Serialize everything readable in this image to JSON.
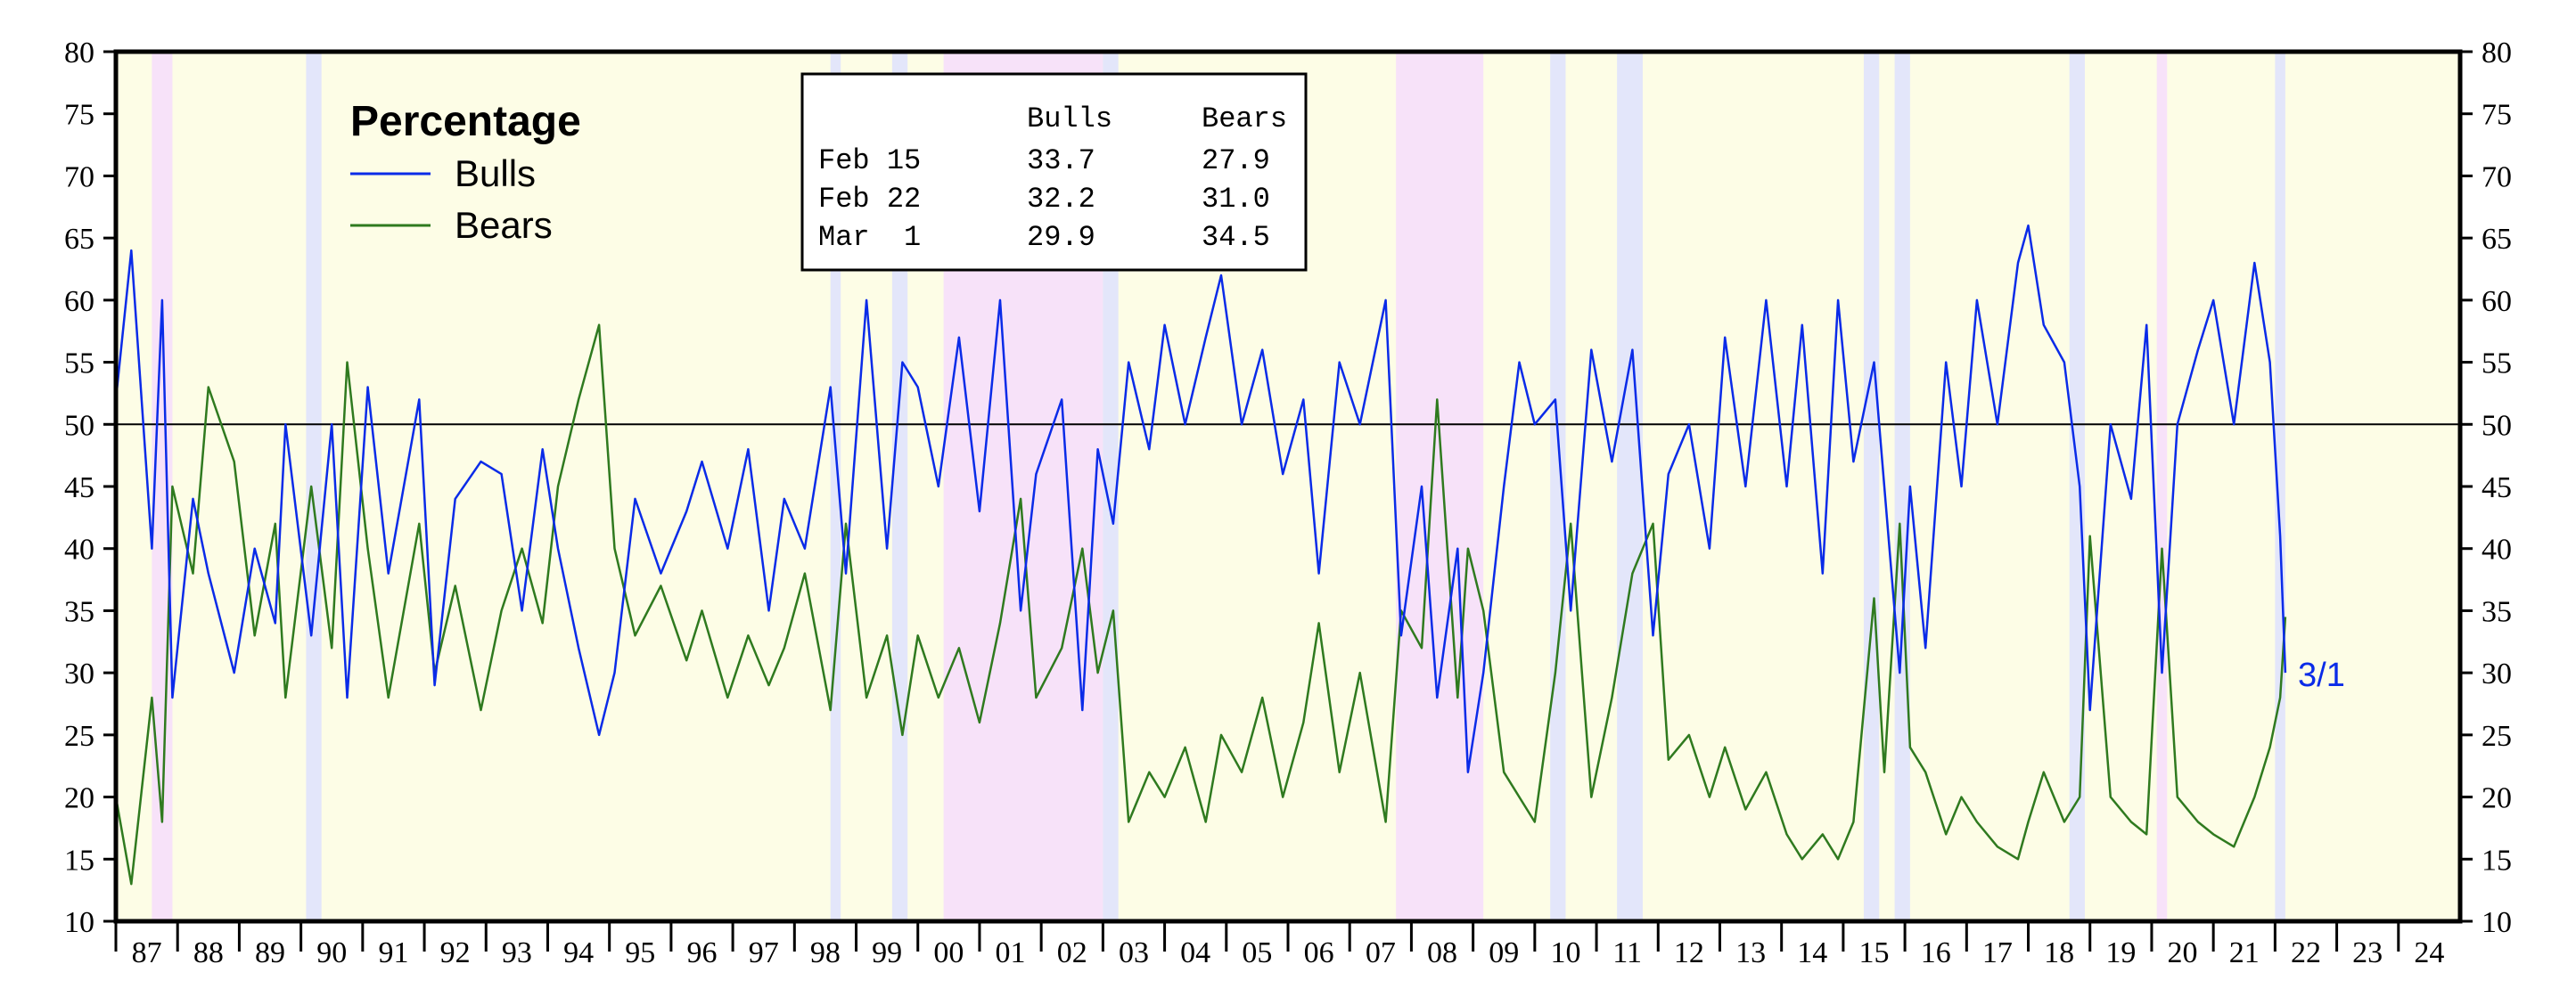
{
  "chart_data": {
    "type": "line",
    "title": "",
    "xlabel": "",
    "ylabel": "",
    "ylim": [
      10,
      80
    ],
    "xlim": [
      "1987-01",
      "2025-01"
    ],
    "y_ticks": [
      10,
      15,
      20,
      25,
      30,
      35,
      40,
      45,
      50,
      55,
      60,
      65,
      70,
      75,
      80
    ],
    "x_tick_labels": [
      "87",
      "88",
      "89",
      "90",
      "91",
      "92",
      "93",
      "94",
      "95",
      "96",
      "97",
      "98",
      "99",
      "00",
      "01",
      "02",
      "03",
      "04",
      "05",
      "06",
      "07",
      "08",
      "09",
      "10",
      "11",
      "12",
      "13",
      "14",
      "15",
      "16",
      "17",
      "18",
      "19",
      "20",
      "21",
      "22",
      "23",
      "24"
    ],
    "reference_line": 50,
    "grid": false,
    "legend": {
      "title": "Percentage",
      "placement": "top-left",
      "entries": [
        {
          "name": "Bulls",
          "color": "#0a2be8"
        },
        {
          "name": "Bears",
          "color": "#2f7a1f"
        }
      ]
    },
    "end_label": "3/1",
    "series": [
      {
        "name": "Bulls",
        "color": "#0a2be8",
        "x": [
          "1987-01",
          "1987-04",
          "1987-08",
          "1987-10",
          "1987-12",
          "1988-04",
          "1988-07",
          "1988-12",
          "1989-04",
          "1989-08",
          "1989-10",
          "1990-03",
          "1990-07",
          "1990-10",
          "1991-02",
          "1991-06",
          "1991-12",
          "1992-03",
          "1992-07",
          "1992-12",
          "1993-04",
          "1993-08",
          "1993-12",
          "1994-03",
          "1994-07",
          "1994-11",
          "1995-02",
          "1995-06",
          "1995-11",
          "1996-04",
          "1996-07",
          "1996-12",
          "1997-04",
          "1997-08",
          "1997-11",
          "1998-03",
          "1998-08",
          "1998-11",
          "1999-03",
          "1999-07",
          "1999-10",
          "2000-01",
          "2000-05",
          "2000-09",
          "2001-01",
          "2001-05",
          "2001-09",
          "2001-12",
          "2002-05",
          "2002-09",
          "2002-12",
          "2003-03",
          "2003-06",
          "2003-10",
          "2004-01",
          "2004-05",
          "2004-09",
          "2004-12",
          "2005-04",
          "2005-08",
          "2005-12",
          "2006-04",
          "2006-07",
          "2006-11",
          "2007-03",
          "2007-08",
          "2007-11",
          "2008-03",
          "2008-06",
          "2008-10",
          "2008-12",
          "2009-03",
          "2009-07",
          "2009-10",
          "2010-01",
          "2010-05",
          "2010-08",
          "2010-12",
          "2011-04",
          "2011-08",
          "2011-12",
          "2012-03",
          "2012-07",
          "2012-11",
          "2013-02",
          "2013-06",
          "2013-10",
          "2014-02",
          "2014-05",
          "2014-09",
          "2014-12",
          "2015-03",
          "2015-07",
          "2015-09",
          "2015-12",
          "2016-02",
          "2016-05",
          "2016-09",
          "2016-12",
          "2017-03",
          "2017-07",
          "2017-11",
          "2018-01",
          "2018-04",
          "2018-08",
          "2018-11",
          "2019-01",
          "2019-05",
          "2019-09",
          "2019-12",
          "2020-03",
          "2020-06",
          "2020-10",
          "2021-01",
          "2021-05",
          "2021-09",
          "2021-12",
          "2022-02",
          "2022-03"
        ],
        "values": [
          52,
          64,
          40,
          60,
          28,
          44,
          38,
          30,
          40,
          34,
          50,
          33,
          50,
          28,
          53,
          38,
          52,
          29,
          44,
          47,
          46,
          35,
          48,
          40,
          32,
          25,
          30,
          44,
          38,
          43,
          47,
          40,
          48,
          35,
          44,
          40,
          53,
          38,
          60,
          40,
          55,
          53,
          45,
          57,
          43,
          60,
          35,
          46,
          52,
          27,
          48,
          42,
          55,
          48,
          58,
          50,
          57,
          62,
          50,
          56,
          46,
          52,
          38,
          55,
          50,
          60,
          33,
          45,
          28,
          40,
          22,
          30,
          45,
          55,
          50,
          52,
          35,
          56,
          47,
          56,
          33,
          46,
          50,
          40,
          57,
          45,
          60,
          45,
          58,
          38,
          60,
          47,
          55,
          45,
          30,
          45,
          32,
          55,
          45,
          60,
          50,
          63,
          66,
          58,
          55,
          45,
          27,
          50,
          44,
          58,
          30,
          50,
          56,
          60,
          50,
          63,
          55,
          41,
          30
        ]
      },
      {
        "name": "Bears",
        "color": "#2f7a1f",
        "x": [
          "1987-01",
          "1987-04",
          "1987-08",
          "1987-10",
          "1987-12",
          "1988-04",
          "1988-07",
          "1988-12",
          "1989-04",
          "1989-08",
          "1989-10",
          "1990-03",
          "1990-07",
          "1990-10",
          "1991-02",
          "1991-06",
          "1991-12",
          "1992-03",
          "1992-07",
          "1992-12",
          "1993-04",
          "1993-08",
          "1993-12",
          "1994-03",
          "1994-07",
          "1994-11",
          "1995-02",
          "1995-06",
          "1995-11",
          "1996-04",
          "1996-07",
          "1996-12",
          "1997-04",
          "1997-08",
          "1997-11",
          "1998-03",
          "1998-08",
          "1998-11",
          "1999-03",
          "1999-07",
          "1999-10",
          "2000-01",
          "2000-05",
          "2000-09",
          "2001-01",
          "2001-05",
          "2001-09",
          "2001-12",
          "2002-05",
          "2002-09",
          "2002-12",
          "2003-03",
          "2003-06",
          "2003-10",
          "2004-01",
          "2004-05",
          "2004-09",
          "2004-12",
          "2005-04",
          "2005-08",
          "2005-12",
          "2006-04",
          "2006-07",
          "2006-11",
          "2007-03",
          "2007-08",
          "2007-11",
          "2008-03",
          "2008-06",
          "2008-10",
          "2008-12",
          "2009-03",
          "2009-07",
          "2009-10",
          "2010-01",
          "2010-05",
          "2010-08",
          "2010-12",
          "2011-04",
          "2011-08",
          "2011-12",
          "2012-03",
          "2012-07",
          "2012-11",
          "2013-02",
          "2013-06",
          "2013-10",
          "2014-02",
          "2014-05",
          "2014-09",
          "2014-12",
          "2015-03",
          "2015-07",
          "2015-09",
          "2015-12",
          "2016-02",
          "2016-05",
          "2016-09",
          "2016-12",
          "2017-03",
          "2017-07",
          "2017-11",
          "2018-01",
          "2018-04",
          "2018-08",
          "2018-11",
          "2019-01",
          "2019-05",
          "2019-09",
          "2019-12",
          "2020-03",
          "2020-06",
          "2020-10",
          "2021-01",
          "2021-05",
          "2021-09",
          "2021-12",
          "2022-02",
          "2022-03"
        ],
        "values": [
          20,
          13,
          28,
          18,
          45,
          38,
          53,
          47,
          33,
          42,
          28,
          45,
          32,
          55,
          40,
          28,
          42,
          30,
          37,
          27,
          35,
          40,
          34,
          45,
          52,
          58,
          40,
          33,
          37,
          31,
          35,
          28,
          33,
          29,
          32,
          38,
          27,
          42,
          28,
          33,
          25,
          33,
          28,
          32,
          26,
          34,
          44,
          28,
          32,
          40,
          30,
          35,
          18,
          22,
          20,
          24,
          18,
          25,
          22,
          28,
          20,
          26,
          34,
          22,
          30,
          18,
          35,
          32,
          52,
          28,
          40,
          35,
          22,
          20,
          18,
          30,
          42,
          20,
          28,
          38,
          42,
          23,
          25,
          20,
          24,
          19,
          22,
          17,
          15,
          17,
          15,
          18,
          36,
          22,
          42,
          24,
          22,
          17,
          20,
          18,
          16,
          15,
          18,
          22,
          18,
          20,
          41,
          20,
          18,
          17,
          40,
          20,
          18,
          17,
          16,
          20,
          24,
          28,
          34.5
        ]
      }
    ],
    "shaded_periods": [
      {
        "start": "1987-08",
        "end": "1987-12",
        "color": "#f7e2f9"
      },
      {
        "start": "1990-02",
        "end": "1990-05",
        "color": "#e3e6fa"
      },
      {
        "start": "1998-08",
        "end": "1998-10",
        "color": "#e3e6fa"
      },
      {
        "start": "1999-08",
        "end": "1999-11",
        "color": "#e3e6fa"
      },
      {
        "start": "2000-06",
        "end": "2003-01",
        "color": "#f7e2f9"
      },
      {
        "start": "2003-01",
        "end": "2003-04",
        "color": "#e3e6fa"
      },
      {
        "start": "2007-10",
        "end": "2009-03",
        "color": "#f7e2f9"
      },
      {
        "start": "2010-04",
        "end": "2010-07",
        "color": "#e3e6fa"
      },
      {
        "start": "2011-05",
        "end": "2011-10",
        "color": "#e3e6fa"
      },
      {
        "start": "2015-05",
        "end": "2015-08",
        "color": "#e3e6fa"
      },
      {
        "start": "2015-11",
        "end": "2016-02",
        "color": "#e3e6fa"
      },
      {
        "start": "2018-09",
        "end": "2018-12",
        "color": "#e3e6fa"
      },
      {
        "start": "2020-02",
        "end": "2020-04",
        "color": "#f7e2f9"
      },
      {
        "start": "2022-01",
        "end": "2022-03",
        "color": "#e3e6fa"
      }
    ],
    "background_color": "#fdfde6",
    "table": {
      "headers": [
        "",
        "Bulls",
        "Bears"
      ],
      "rows": [
        [
          "Feb 15",
          "33.7",
          "27.9"
        ],
        [
          "Feb 22",
          "32.2",
          "31.0"
        ],
        [
          "Mar  1",
          "29.9",
          "34.5"
        ]
      ]
    }
  }
}
